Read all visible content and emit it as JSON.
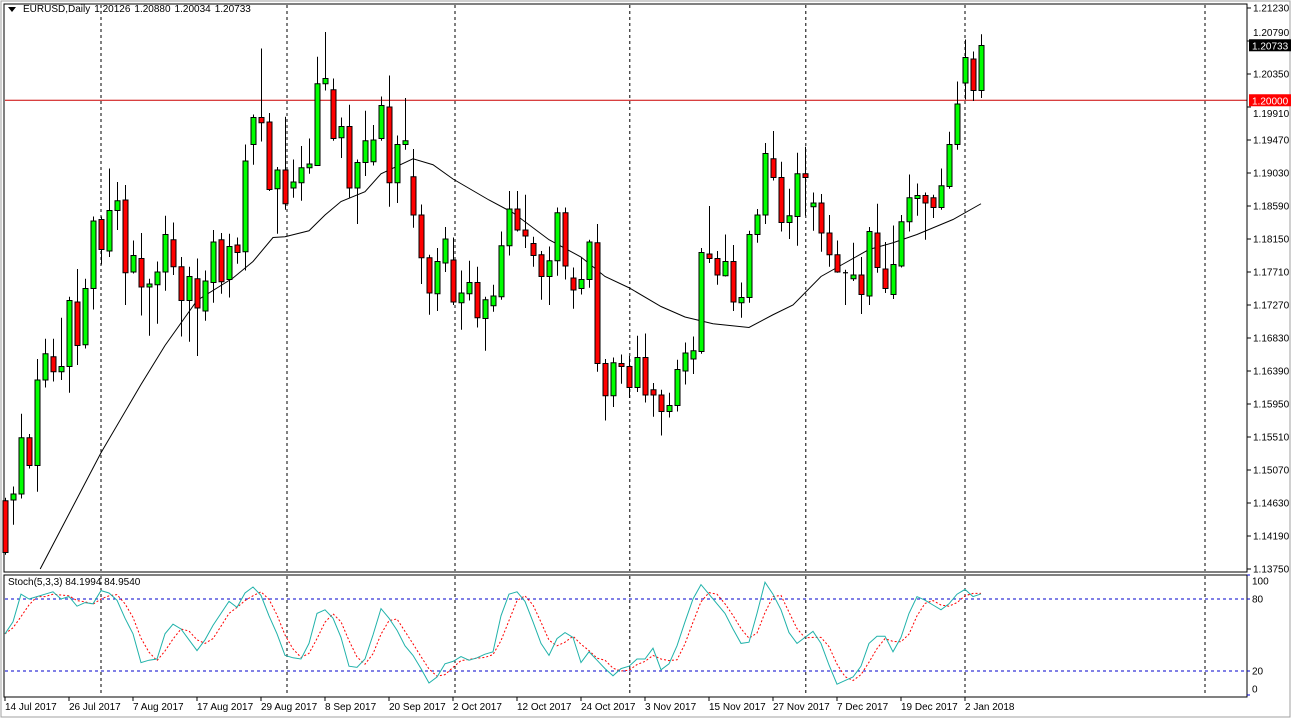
{
  "header": {
    "symbol": "EURUSD,Daily",
    "open": "1.20126",
    "high": "1.20880",
    "low": "1.20034",
    "close": "1.20733"
  },
  "price_axis": {
    "ticks": [
      "1.21230",
      "1.20790",
      "1.20350",
      "1.19910",
      "1.19470",
      "1.19030",
      "1.18590",
      "1.18150",
      "1.17710",
      "1.17270",
      "1.16830",
      "1.16390",
      "1.15950",
      "1.15510",
      "1.15070",
      "1.14630",
      "1.14190",
      "1.13750"
    ],
    "current_price_label": "1.20733",
    "hline_label": "1.20000"
  },
  "stoch_panel": {
    "title": "Stoch(5,3,3) 84.1994 84.9540",
    "levels": [
      "100",
      "80",
      "20",
      "0"
    ]
  },
  "date_axis": [
    {
      "i": 0,
      "label": "14 Jul 2017"
    },
    {
      "i": 8,
      "label": "26 Jul 2017"
    },
    {
      "i": 16,
      "label": "7 Aug 2017"
    },
    {
      "i": 24,
      "label": "17 Aug 2017"
    },
    {
      "i": 32,
      "label": "29 Aug 2017"
    },
    {
      "i": 40,
      "label": "8 Sep 2017"
    },
    {
      "i": 48,
      "label": "20 Sep 2017"
    },
    {
      "i": 56,
      "label": "2 Oct 2017"
    },
    {
      "i": 64,
      "label": "12 Oct 2017"
    },
    {
      "i": 72,
      "label": "24 Oct 2017"
    },
    {
      "i": 80,
      "label": "3 Nov 2017"
    },
    {
      "i": 88,
      "label": "15 Nov 2017"
    },
    {
      "i": 96,
      "label": "27 Nov 2017"
    },
    {
      "i": 104,
      "label": "7 Dec 2017"
    },
    {
      "i": 112,
      "label": "19 Dec 2017"
    },
    {
      "i": 120,
      "label": "2 Jan 2018"
    }
  ],
  "colors": {
    "bull": "#00ff00",
    "bear": "#ff0000",
    "stoch_main": "#20b2aa",
    "stoch_signal": "#ff0000",
    "level_line": "#0000cc",
    "hline": "#cc0000"
  },
  "chart_data": {
    "type": "candlestick",
    "title": "EURUSD,Daily",
    "ylim": [
      1.1375,
      1.2123
    ],
    "hline": 1.2,
    "ohlc_format": [
      "open",
      "high",
      "low",
      "close"
    ],
    "candles": [
      [
        1.1466,
        1.147,
        1.1394,
        1.1397
      ],
      [
        1.1467,
        1.1485,
        1.1434,
        1.1475
      ],
      [
        1.1475,
        1.1582,
        1.1469,
        1.155
      ],
      [
        1.155,
        1.1555,
        1.1509,
        1.1513
      ],
      [
        1.1513,
        1.1655,
        1.1478,
        1.1627
      ],
      [
        1.1627,
        1.1682,
        1.1617,
        1.1662
      ],
      [
        1.1658,
        1.1682,
        1.1625,
        1.1638
      ],
      [
        1.1638,
        1.171,
        1.1627,
        1.1645
      ],
      [
        1.1645,
        1.1738,
        1.161,
        1.1733
      ],
      [
        1.1731,
        1.1775,
        1.1647,
        1.1673
      ],
      [
        1.1674,
        1.1762,
        1.1669,
        1.1749
      ],
      [
        1.1749,
        1.1845,
        1.1721,
        1.1839
      ],
      [
        1.1841,
        1.1845,
        1.1781,
        1.1801
      ],
      [
        1.1799,
        1.1909,
        1.1791,
        1.1853
      ],
      [
        1.1853,
        1.1891,
        1.1827,
        1.1866
      ],
      [
        1.1867,
        1.1887,
        1.1727,
        1.177
      ],
      [
        1.1771,
        1.1813,
        1.1769,
        1.1793
      ],
      [
        1.1789,
        1.1823,
        1.1713,
        1.1751
      ],
      [
        1.1751,
        1.1762,
        1.1686,
        1.1755
      ],
      [
        1.1754,
        1.1785,
        1.1702,
        1.1771
      ],
      [
        1.1771,
        1.1846,
        1.1746,
        1.1821
      ],
      [
        1.1814,
        1.1837,
        1.1767,
        1.1778
      ],
      [
        1.1778,
        1.1791,
        1.1685,
        1.1733
      ],
      [
        1.1733,
        1.1778,
        1.1678,
        1.1765
      ],
      [
        1.1762,
        1.1789,
        1.1659,
        1.1723
      ],
      [
        1.1719,
        1.1773,
        1.1706,
        1.1759
      ],
      [
        1.1757,
        1.1827,
        1.173,
        1.1811
      ],
      [
        1.1814,
        1.1823,
        1.1742,
        1.1758
      ],
      [
        1.1761,
        1.1822,
        1.1737,
        1.1805
      ],
      [
        1.1807,
        1.1817,
        1.1782,
        1.1797
      ],
      [
        1.1798,
        1.1941,
        1.1773,
        1.1919
      ],
      [
        1.1941,
        1.1981,
        1.1914,
        1.1977
      ],
      [
        1.1977,
        1.2069,
        1.1945,
        1.197
      ],
      [
        1.1971,
        1.1983,
        1.1879,
        1.1881
      ],
      [
        1.1882,
        1.1911,
        1.1822,
        1.1907
      ],
      [
        1.1907,
        1.1978,
        1.1854,
        1.1862
      ],
      [
        1.1883,
        1.1921,
        1.187,
        1.1891
      ],
      [
        1.189,
        1.1939,
        1.1866,
        1.191
      ],
      [
        1.191,
        1.1949,
        1.1902,
        1.1915
      ],
      [
        1.1913,
        1.2058,
        1.1913,
        1.2022
      ],
      [
        1.2022,
        1.2091,
        1.2013,
        1.2029
      ],
      [
        1.2014,
        1.2029,
        1.1946,
        1.1949
      ],
      [
        1.195,
        1.1977,
        1.1923,
        1.1965
      ],
      [
        1.1965,
        1.1994,
        1.187,
        1.1883
      ],
      [
        1.1883,
        1.1921,
        1.1835,
        1.1917
      ],
      [
        1.1917,
        1.1986,
        1.1899,
        1.1946
      ],
      [
        1.1918,
        1.1967,
        1.1913,
        1.1947
      ],
      [
        1.1949,
        1.2005,
        1.1946,
        1.1993
      ],
      [
        1.1991,
        1.2033,
        1.1858,
        1.189
      ],
      [
        1.189,
        1.1953,
        1.1863,
        1.1941
      ],
      [
        1.1941,
        1.2003,
        1.1934,
        1.1946
      ],
      [
        1.1898,
        1.1935,
        1.183,
        1.1847
      ],
      [
        1.1847,
        1.1861,
        1.1755,
        1.179
      ],
      [
        1.179,
        1.1794,
        1.1714,
        1.1743
      ],
      [
        1.1742,
        1.1803,
        1.1719,
        1.1785
      ],
      [
        1.1783,
        1.1831,
        1.1771,
        1.1815
      ],
      [
        1.1787,
        1.1817,
        1.1727,
        1.1731
      ],
      [
        1.173,
        1.1773,
        1.1694,
        1.1743
      ],
      [
        1.1742,
        1.1786,
        1.1733,
        1.1757
      ],
      [
        1.1757,
        1.1778,
        1.1697,
        1.171
      ],
      [
        1.1709,
        1.1738,
        1.1666,
        1.1734
      ],
      [
        1.1726,
        1.1754,
        1.1718,
        1.1739
      ],
      [
        1.1738,
        1.1825,
        1.1734,
        1.1806
      ],
      [
        1.1806,
        1.1879,
        1.1793,
        1.1855
      ],
      [
        1.1855,
        1.1879,
        1.1825,
        1.1827
      ],
      [
        1.1827,
        1.1874,
        1.1803,
        1.1819
      ],
      [
        1.1809,
        1.1818,
        1.1778,
        1.1793
      ],
      [
        1.1794,
        1.1799,
        1.1734,
        1.1765
      ],
      [
        1.1765,
        1.1805,
        1.1727,
        1.1786
      ],
      [
        1.1786,
        1.1857,
        1.1766,
        1.185
      ],
      [
        1.185,
        1.1857,
        1.1761,
        1.1779
      ],
      [
        1.1763,
        1.1777,
        1.1722,
        1.1747
      ],
      [
        1.1749,
        1.1791,
        1.1741,
        1.1761
      ],
      [
        1.1761,
        1.1814,
        1.175,
        1.1811
      ],
      [
        1.181,
        1.1835,
        1.1638,
        1.1649
      ],
      [
        1.1649,
        1.1655,
        1.1573,
        1.1606
      ],
      [
        1.1606,
        1.1657,
        1.1591,
        1.165
      ],
      [
        1.1649,
        1.1661,
        1.1622,
        1.1645
      ],
      [
        1.1645,
        1.1659,
        1.1603,
        1.1617
      ],
      [
        1.1617,
        1.1686,
        1.1611,
        1.1657
      ],
      [
        1.1657,
        1.1689,
        1.1597,
        1.1607
      ],
      [
        1.1614,
        1.1623,
        1.1578,
        1.1607
      ],
      [
        1.1607,
        1.1614,
        1.1553,
        1.1585
      ],
      [
        1.1585,
        1.161,
        1.1577,
        1.1593
      ],
      [
        1.1593,
        1.1654,
        1.1585,
        1.1641
      ],
      [
        1.1639,
        1.1677,
        1.1621,
        1.1663
      ],
      [
        1.1655,
        1.1685,
        1.1635,
        1.1666
      ],
      [
        1.1665,
        1.1803,
        1.1662,
        1.1797
      ],
      [
        1.1795,
        1.1859,
        1.1783,
        1.1789
      ],
      [
        1.1789,
        1.1799,
        1.1754,
        1.1767
      ],
      [
        1.1766,
        1.1821,
        1.1765,
        1.1785
      ],
      [
        1.1785,
        1.1807,
        1.1719,
        1.1731
      ],
      [
        1.173,
        1.1757,
        1.171,
        1.1737
      ],
      [
        1.1737,
        1.1826,
        1.173,
        1.1821
      ],
      [
        1.1821,
        1.1855,
        1.181,
        1.1847
      ],
      [
        1.1847,
        1.1943,
        1.1835,
        1.1929
      ],
      [
        1.1922,
        1.1959,
        1.1893,
        1.1897
      ],
      [
        1.1897,
        1.1918,
        1.1825,
        1.1837
      ],
      [
        1.1837,
        1.1882,
        1.1815,
        1.1846
      ],
      [
        1.1845,
        1.193,
        1.1806,
        1.1902
      ],
      [
        1.1902,
        1.1938,
        1.1846,
        1.1897
      ],
      [
        1.1858,
        1.1877,
        1.1826,
        1.1863
      ],
      [
        1.1863,
        1.1875,
        1.1798,
        1.1823
      ],
      [
        1.1823,
        1.1847,
        1.1778,
        1.1794
      ],
      [
        1.1794,
        1.1813,
        1.177,
        1.1771
      ],
      [
        1.177,
        1.1774,
        1.1727,
        1.177
      ],
      [
        1.1762,
        1.181,
        1.1759,
        1.1767
      ],
      [
        1.1767,
        1.1791,
        1.1715,
        1.1741
      ],
      [
        1.1739,
        1.1831,
        1.1727,
        1.1825
      ],
      [
        1.1823,
        1.1862,
        1.177,
        1.1777
      ],
      [
        1.1775,
        1.1811,
        1.1743,
        1.1749
      ],
      [
        1.1741,
        1.1833,
        1.1735,
        1.1781
      ],
      [
        1.1779,
        1.1847,
        1.1777,
        1.1838
      ],
      [
        1.1838,
        1.1901,
        1.1825,
        1.187
      ],
      [
        1.1869,
        1.1889,
        1.1846,
        1.1873
      ],
      [
        1.1873,
        1.1877,
        1.1814,
        1.1863
      ],
      [
        1.187,
        1.1874,
        1.1843,
        1.1857
      ],
      [
        1.1857,
        1.1909,
        1.1854,
        1.1886
      ],
      [
        1.1885,
        1.1958,
        1.1882,
        1.1941
      ],
      [
        1.1941,
        1.2025,
        1.1934,
        1.1995
      ],
      [
        1.2023,
        1.2081,
        1.2001,
        1.2057
      ],
      [
        1.2055,
        1.2065,
        1.1999,
        1.2013
      ],
      [
        1.2013,
        1.2088,
        1.2003,
        1.2073
      ]
    ],
    "moving_average": [
      [
        4.4,
        1.1375
      ],
      [
        12,
        1.153
      ],
      [
        17,
        1.1621
      ],
      [
        20,
        1.1673
      ],
      [
        24,
        1.1733
      ],
      [
        28.5,
        1.1763
      ],
      [
        31,
        1.1785
      ],
      [
        33.5,
        1.1817
      ],
      [
        35,
        1.1818
      ],
      [
        38,
        1.1826
      ],
      [
        40,
        1.1847
      ],
      [
        42,
        1.1865
      ],
      [
        45,
        1.1878
      ],
      [
        47,
        1.1902
      ],
      [
        51,
        1.1922
      ],
      [
        53.5,
        1.1914
      ],
      [
        56,
        1.1895
      ],
      [
        60.5,
        1.1867
      ],
      [
        63.5,
        1.185
      ],
      [
        68,
        1.1814
      ],
      [
        72,
        1.1791
      ],
      [
        75,
        1.1765
      ],
      [
        78,
        1.175
      ],
      [
        82,
        1.1725
      ],
      [
        85,
        1.1711
      ],
      [
        88.5,
        1.1702
      ],
      [
        93,
        1.1697
      ],
      [
        96,
        1.1714
      ],
      [
        98.5,
        1.1727
      ],
      [
        102,
        1.1765
      ],
      [
        104,
        1.1777
      ],
      [
        108,
        1.1801
      ],
      [
        111,
        1.181
      ],
      [
        114,
        1.1821
      ],
      [
        118.5,
        1.1841
      ],
      [
        122,
        1.1862
      ]
    ],
    "stochastic": {
      "k_period": 5,
      "d_period": 3,
      "slowing": 3,
      "ylim": [
        0,
        100
      ],
      "levels": [
        20,
        80
      ],
      "main": [
        51,
        61,
        84,
        80,
        82,
        84,
        86,
        80,
        82,
        74,
        77,
        76,
        87,
        85,
        79,
        64,
        51,
        27,
        29,
        30,
        51,
        59,
        55,
        46,
        37,
        46,
        58,
        68,
        78,
        73,
        85,
        90,
        83,
        66,
        51,
        33,
        31,
        30,
        43,
        68,
        71,
        64,
        48,
        24,
        23,
        30,
        50,
        72,
        64,
        54,
        41,
        33,
        22,
        10,
        15,
        26,
        28,
        32,
        29,
        31,
        34,
        36,
        66,
        84,
        86,
        78,
        61,
        43,
        33,
        47,
        52,
        48,
        27,
        36,
        29,
        22,
        16,
        22,
        24,
        30,
        30,
        39,
        21,
        26,
        41,
        61,
        80,
        92,
        84,
        76,
        68,
        55,
        43,
        44,
        68,
        94,
        84,
        71,
        52,
        43,
        48,
        53,
        43,
        25,
        9,
        12,
        15,
        24,
        43,
        49,
        49,
        36,
        48,
        68,
        82,
        79,
        75,
        71,
        76,
        84,
        88,
        82,
        84.2
      ]
    }
  }
}
